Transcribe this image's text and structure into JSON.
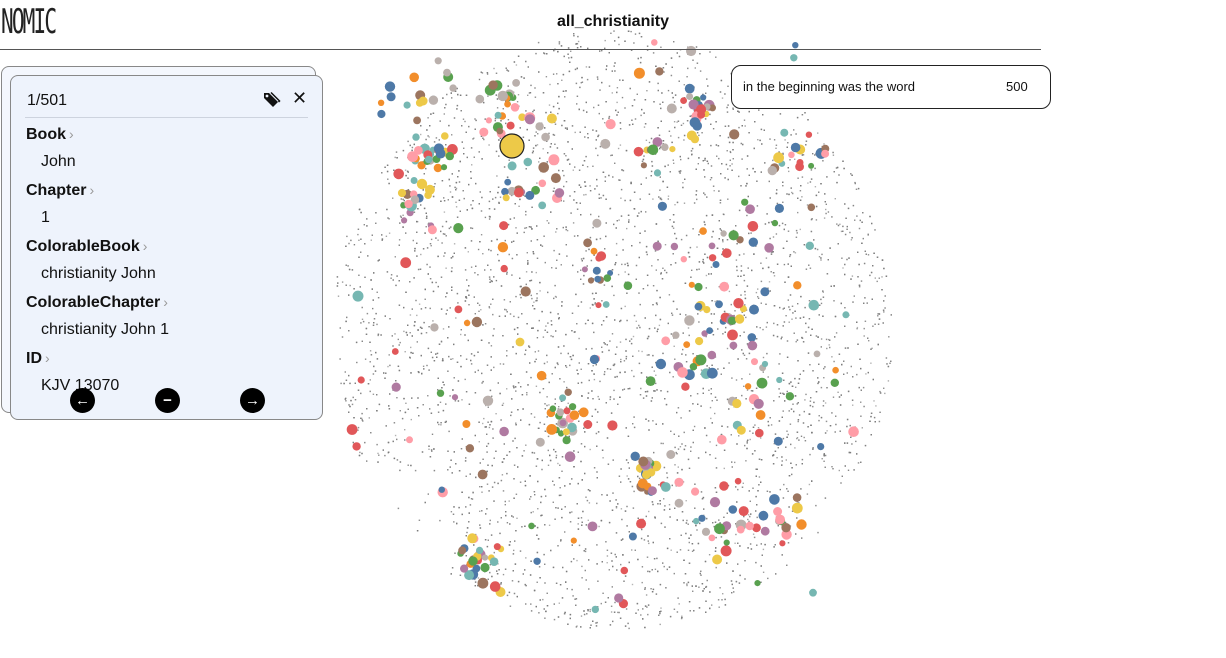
{
  "header": {
    "logo_text": "NOMIC",
    "project_title": "all_christianity"
  },
  "search": {
    "query": "in the beginning was the word",
    "count": "500"
  },
  "detail_panel": {
    "counter": "1/501",
    "fields": [
      {
        "label": "Book",
        "value": "John"
      },
      {
        "label": "Chapter",
        "value": "1"
      },
      {
        "label": "ColorableBook",
        "value": "christianity John"
      },
      {
        "label": "ColorableChapter",
        "value": "christianity John 1"
      },
      {
        "label": "ID",
        "value": "KJV 13070"
      }
    ]
  },
  "icons": {
    "tag": "tag-icon",
    "close": "close-icon",
    "prev": "arrow-left-icon",
    "remove": "minus-icon",
    "next": "arrow-right-icon"
  },
  "colors": {
    "points_gray": "#7a7a7a",
    "palette": [
      "#e15759",
      "#4e79a7",
      "#59a14f",
      "#f28e2b",
      "#edc948",
      "#b07aa1",
      "#ff9da7",
      "#9c755f",
      "#76b7b2",
      "#bab0ac"
    ],
    "highlight": "#edc948"
  }
}
